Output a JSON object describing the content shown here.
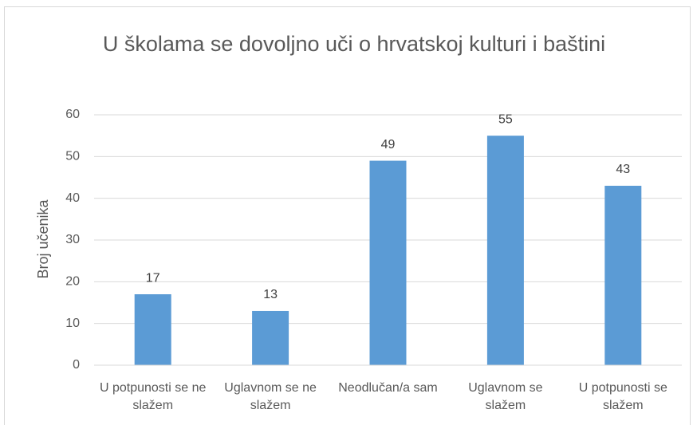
{
  "chart_data": {
    "type": "bar",
    "title": "U školama se dovoljno uči o hrvatskoj kulturi i baštini",
    "y_label": "Broj učenika",
    "categories": [
      "U potpunosti se ne slažem",
      "Uglavnom se ne slažem",
      "Neodlučan/a sam",
      "Uglavnom se slažem",
      "U potpunosti se slažem"
    ],
    "values": [
      17,
      13,
      49,
      55,
      43
    ],
    "color": "#5b9bd5",
    "ylim": [
      0,
      60
    ],
    "yticks": [
      0,
      10,
      20,
      30,
      40,
      50,
      60
    ],
    "grid": true
  }
}
